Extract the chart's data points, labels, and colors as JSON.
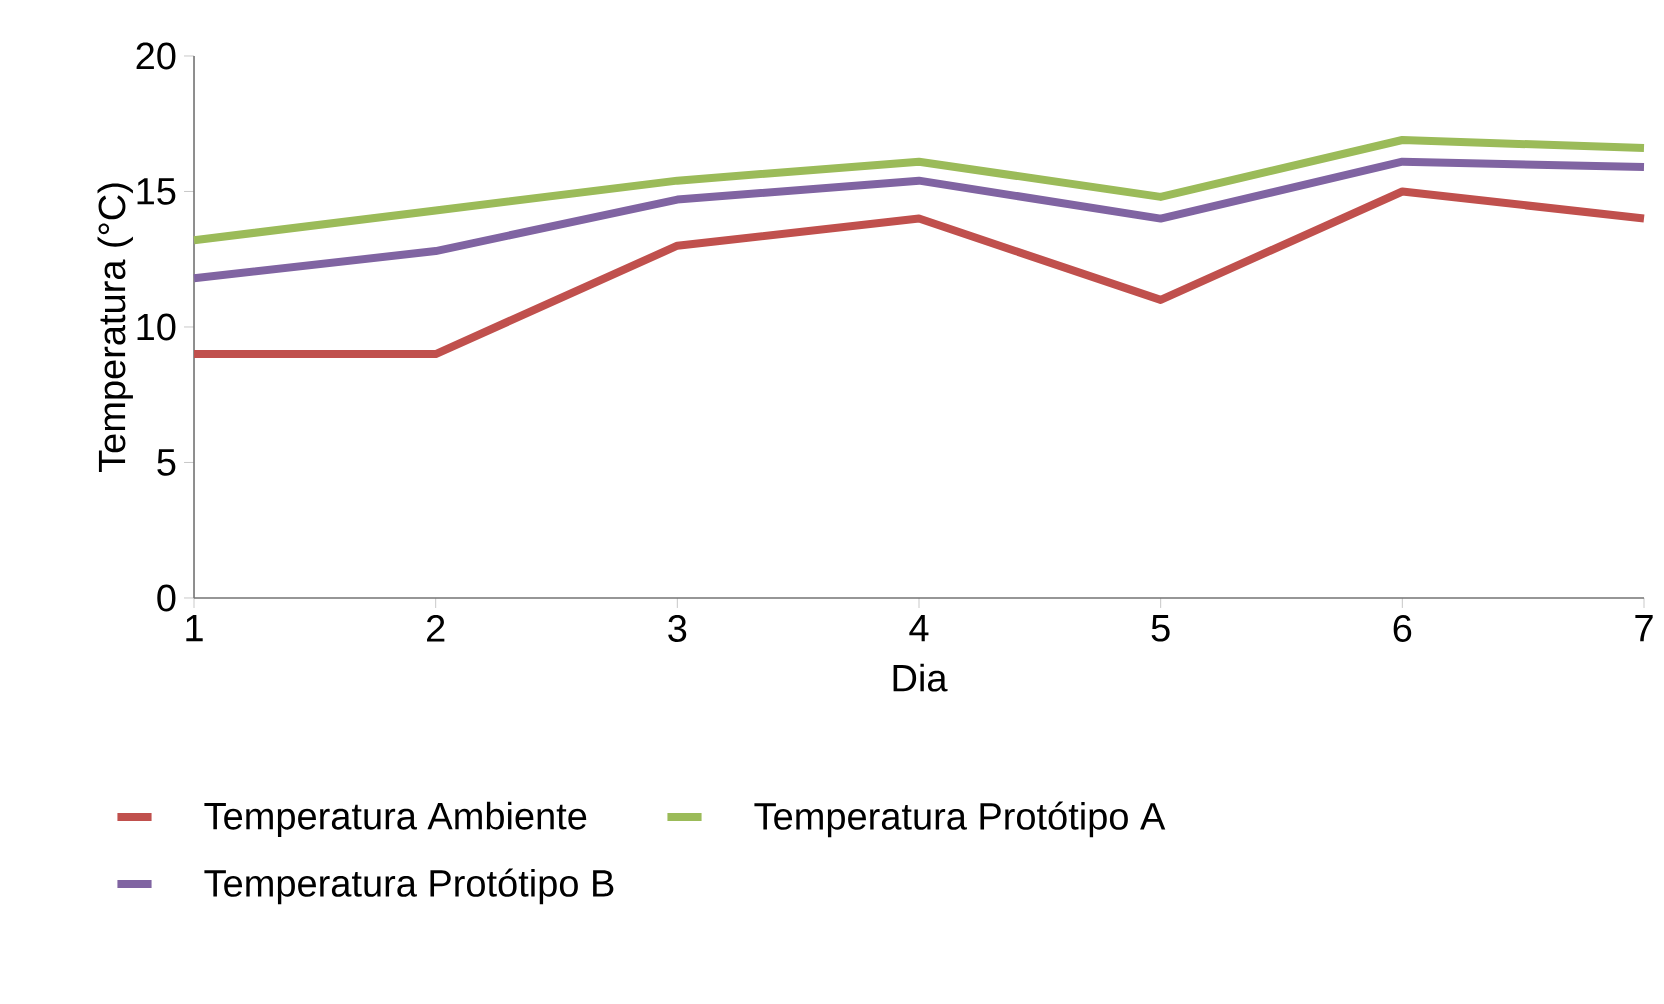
{
  "chart_data": {
    "type": "line",
    "xlabel": "Dia",
    "ylabel": "Temperatura (°C)",
    "categories": [
      "1",
      "2",
      "3",
      "4",
      "5",
      "6",
      "7"
    ],
    "series": [
      {
        "name": "Temperatura Ambiente",
        "color": "#c0504d",
        "values": [
          9,
          9,
          13,
          14,
          11,
          15,
          14
        ]
      },
      {
        "name": "Temperatura Protótipo A",
        "color": "#9bbb59",
        "values": [
          13.2,
          14.3,
          15.4,
          16.1,
          14.8,
          16.9,
          16.6
        ]
      },
      {
        "name": "Temperatura Protótipo B",
        "color": "#8064a2",
        "values": [
          11.8,
          12.8,
          14.7,
          15.4,
          14.0,
          16.1,
          15.9
        ]
      }
    ],
    "ylim": [
      0,
      20
    ],
    "yticks": [
      0,
      5,
      10,
      15,
      20
    ],
    "grid": false,
    "legend": "bottom",
    "marker": "none",
    "line_style": "solid"
  }
}
